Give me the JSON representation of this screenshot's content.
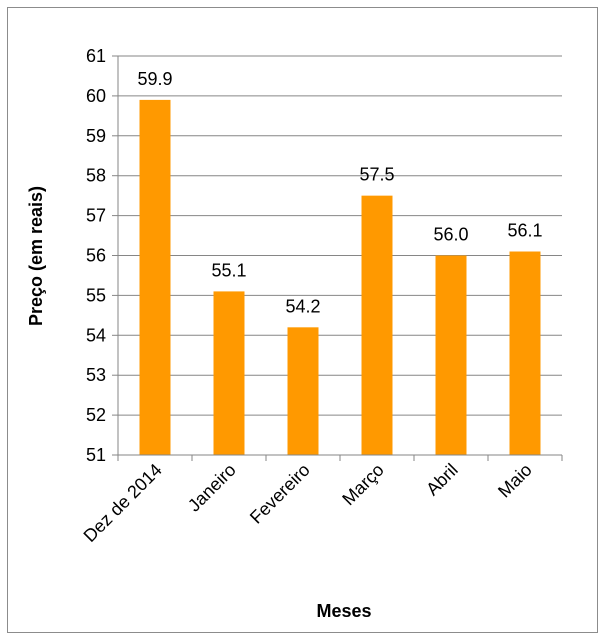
{
  "chart_data": {
    "type": "bar",
    "categories": [
      "Dez de 2014",
      "Janeiro",
      "Fevereiro",
      "Março",
      "Abril",
      "Maio"
    ],
    "values": [
      59.9,
      55.1,
      54.2,
      57.5,
      56.0,
      56.1
    ],
    "data_labels": [
      "59.9",
      "55.1",
      "54.2",
      "57.5",
      "56.0",
      "56.1"
    ],
    "title": "",
    "xlabel": "Meses",
    "ylabel": "Preço (em reais)",
    "ylim": [
      51,
      61
    ],
    "yticks": [
      51,
      52,
      53,
      54,
      55,
      56,
      57,
      58,
      59,
      60,
      61
    ],
    "grid": true,
    "legend": "none",
    "bar_color": "#FF9900",
    "grid_color": "#868686"
  }
}
